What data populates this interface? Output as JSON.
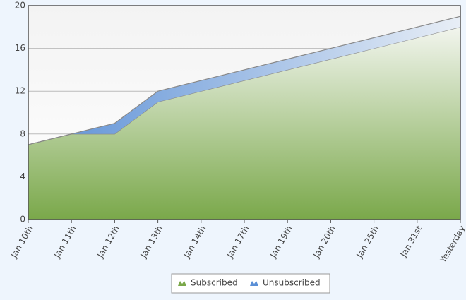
{
  "chart_data": {
    "type": "stacked-area",
    "categories": [
      "Jan 10th",
      "Jan 11th",
      "Jan 12th",
      "Jan 13th",
      "Jan 14th",
      "Jan 17th",
      "Jan 19th",
      "Jan 20th",
      "Jan 25th",
      "Jan 31st",
      "Yesterday"
    ],
    "series": [
      {
        "name": "Subscribed",
        "color": "#7aa84a",
        "values": [
          7,
          8,
          8,
          11,
          12,
          13,
          14,
          15,
          16,
          17,
          18
        ]
      },
      {
        "name": "Unsubscribed",
        "color": "#5a8fd6",
        "values": [
          0,
          0,
          1,
          1,
          1,
          1,
          1,
          1,
          1,
          1,
          1
        ]
      }
    ],
    "ylim": [
      0,
      20
    ],
    "yticks": [
      0,
      4,
      8,
      12,
      16,
      20
    ],
    "grid": true,
    "legend": "bottom"
  }
}
